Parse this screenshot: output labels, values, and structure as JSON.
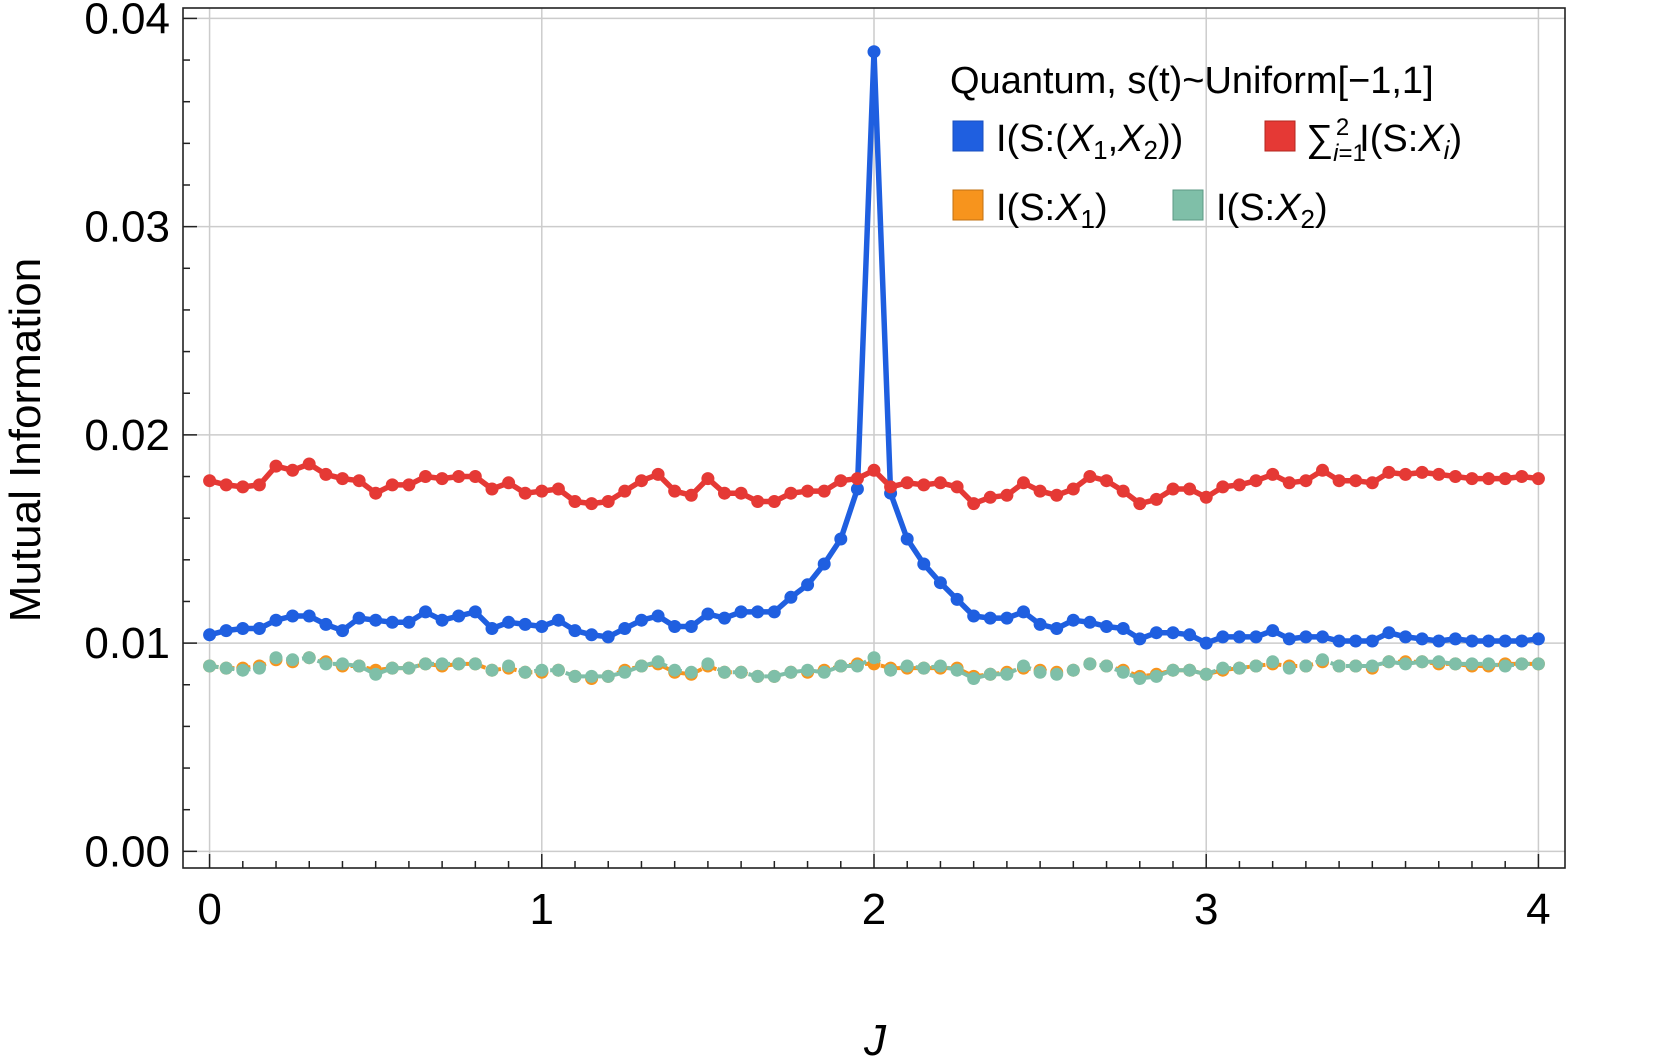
{
  "chart_data": {
    "type": "line",
    "xlabel": "J",
    "ylabel": "Mutual Information",
    "xlim": [
      -0.08,
      4.08
    ],
    "ylim": [
      -0.0008,
      0.0405
    ],
    "x_ticks": [
      "0",
      "1",
      "2",
      "3",
      "4"
    ],
    "y_ticks": [
      "0.00",
      "0.01",
      "0.02",
      "0.03",
      "0.04"
    ],
    "grid": true,
    "legend": {
      "placement": "top-right",
      "title": "Quantum, s(t)~Uniform[−1,1]",
      "entries": [
        {
          "id": "joint",
          "label": "I(S:(X1,X2))"
        },
        {
          "id": "sum",
          "label": "∑ i=1..2 I(S:Xi)"
        },
        {
          "id": "x1",
          "label": "I(S:X1)"
        },
        {
          "id": "x2",
          "label": "I(S:X2)"
        }
      ]
    },
    "x": [
      0,
      0.05,
      0.1,
      0.15,
      0.2,
      0.25,
      0.3,
      0.35,
      0.4,
      0.45,
      0.5,
      0.55,
      0.6,
      0.65,
      0.7,
      0.75,
      0.8,
      0.85,
      0.9,
      0.95,
      1,
      1.05,
      1.1,
      1.15,
      1.2,
      1.25,
      1.3,
      1.35,
      1.4,
      1.45,
      1.5,
      1.55,
      1.6,
      1.65,
      1.7,
      1.75,
      1.8,
      1.85,
      1.9,
      1.95,
      2,
      2.05,
      2.1,
      2.15,
      2.2,
      2.25,
      2.3,
      2.35,
      2.4,
      2.45,
      2.5,
      2.55,
      2.6,
      2.65,
      2.7,
      2.75,
      2.8,
      2.85,
      2.9,
      2.95,
      3,
      3.05,
      3.1,
      3.15,
      3.2,
      3.25,
      3.3,
      3.35,
      3.4,
      3.45,
      3.5,
      3.55,
      3.6,
      3.65,
      3.7,
      3.75,
      3.8,
      3.85,
      3.9,
      3.95,
      4
    ],
    "series": [
      {
        "id": "joint",
        "name": "I(S:(X1,X2))",
        "color": "#1f5fe0",
        "dashed": false,
        "values": [
          0.0104,
          0.0106,
          0.0107,
          0.0107,
          0.0111,
          0.0113,
          0.0113,
          0.0109,
          0.0106,
          0.0112,
          0.0111,
          0.011,
          0.011,
          0.0115,
          0.0111,
          0.0113,
          0.0115,
          0.0107,
          0.011,
          0.0109,
          0.0108,
          0.0111,
          0.0106,
          0.0104,
          0.0103,
          0.0107,
          0.0111,
          0.0113,
          0.0108,
          0.0108,
          0.0114,
          0.0112,
          0.0115,
          0.0115,
          0.0115,
          0.0122,
          0.0128,
          0.0138,
          0.015,
          0.0174,
          0.0384,
          0.0172,
          0.015,
          0.0138,
          0.0129,
          0.0121,
          0.0113,
          0.0112,
          0.0112,
          0.0115,
          0.0109,
          0.0107,
          0.0111,
          0.011,
          0.0108,
          0.0107,
          0.0102,
          0.0105,
          0.0105,
          0.0104,
          0.01,
          0.0103,
          0.0103,
          0.0103,
          0.0106,
          0.0102,
          0.0103,
          0.0103,
          0.0101,
          0.0101,
          0.0101,
          0.0105,
          0.0103,
          0.0102,
          0.0101,
          0.0102,
          0.0101,
          0.0101,
          0.0101,
          0.0101,
          0.0102
        ]
      },
      {
        "id": "sum",
        "name": "∑ i=1..2 I(S:Xi)",
        "color": "#e53935",
        "dashed": false,
        "values": [
          0.0178,
          0.0176,
          0.0175,
          0.0176,
          0.0185,
          0.0183,
          0.0186,
          0.0181,
          0.0179,
          0.0178,
          0.0172,
          0.0176,
          0.0176,
          0.018,
          0.0179,
          0.018,
          0.018,
          0.0174,
          0.0177,
          0.0172,
          0.0173,
          0.0174,
          0.0168,
          0.0167,
          0.0168,
          0.0173,
          0.0178,
          0.0181,
          0.0173,
          0.0171,
          0.0179,
          0.0172,
          0.0172,
          0.0168,
          0.0168,
          0.0172,
          0.0173,
          0.0173,
          0.0178,
          0.0179,
          0.0183,
          0.0175,
          0.0177,
          0.0176,
          0.0177,
          0.0175,
          0.0167,
          0.017,
          0.0171,
          0.0177,
          0.0173,
          0.0171,
          0.0174,
          0.018,
          0.0178,
          0.0173,
          0.0167,
          0.0169,
          0.0174,
          0.0174,
          0.017,
          0.0175,
          0.0176,
          0.0178,
          0.0181,
          0.0177,
          0.0178,
          0.0183,
          0.0178,
          0.0178,
          0.0177,
          0.0182,
          0.0181,
          0.0182,
          0.0181,
          0.018,
          0.0179,
          0.0179,
          0.0179,
          0.018,
          0.0179
        ]
      },
      {
        "id": "x1",
        "name": "I(S:X1)",
        "color": "#f7941d",
        "dashed": true,
        "values": [
          0.0089,
          0.0088,
          0.0088,
          0.0089,
          0.0092,
          0.0091,
          0.0093,
          0.0091,
          0.0089,
          0.0089,
          0.0087,
          0.0088,
          0.0088,
          0.009,
          0.0089,
          0.009,
          0.009,
          0.0087,
          0.0088,
          0.0086,
          0.0086,
          0.0087,
          0.0084,
          0.0083,
          0.0084,
          0.0087,
          0.0089,
          0.009,
          0.0086,
          0.0085,
          0.0089,
          0.0086,
          0.0086,
          0.0084,
          0.0084,
          0.0086,
          0.0086,
          0.0087,
          0.0089,
          0.009,
          0.009,
          0.0088,
          0.0088,
          0.0088,
          0.0088,
          0.0088,
          0.0084,
          0.0085,
          0.0086,
          0.0088,
          0.0087,
          0.0086,
          0.0087,
          0.009,
          0.0089,
          0.0087,
          0.0084,
          0.0085,
          0.0087,
          0.0087,
          0.0085,
          0.0087,
          0.0088,
          0.0089,
          0.009,
          0.0089,
          0.0089,
          0.0091,
          0.0089,
          0.0089,
          0.0088,
          0.0091,
          0.0091,
          0.0091,
          0.009,
          0.009,
          0.0089,
          0.0089,
          0.009,
          0.009,
          0.009
        ]
      },
      {
        "id": "x2",
        "name": "I(S:X2)",
        "color": "#7fbfa8",
        "dashed": true,
        "values": [
          0.0089,
          0.0088,
          0.0087,
          0.0088,
          0.0093,
          0.0092,
          0.0093,
          0.009,
          0.009,
          0.0089,
          0.0085,
          0.0088,
          0.0088,
          0.009,
          0.009,
          0.009,
          0.009,
          0.0087,
          0.0089,
          0.0086,
          0.0087,
          0.0087,
          0.0084,
          0.0084,
          0.0084,
          0.0086,
          0.0089,
          0.0091,
          0.0087,
          0.0086,
          0.009,
          0.0086,
          0.0086,
          0.0084,
          0.0084,
          0.0086,
          0.0087,
          0.0086,
          0.0089,
          0.0089,
          0.0093,
          0.0087,
          0.0089,
          0.0088,
          0.0089,
          0.0087,
          0.0083,
          0.0085,
          0.0085,
          0.0089,
          0.0086,
          0.0085,
          0.0087,
          0.009,
          0.0089,
          0.0086,
          0.0083,
          0.0084,
          0.0087,
          0.0087,
          0.0085,
          0.0088,
          0.0088,
          0.0089,
          0.0091,
          0.0088,
          0.0089,
          0.0092,
          0.0089,
          0.0089,
          0.0089,
          0.0091,
          0.009,
          0.0091,
          0.0091,
          0.009,
          0.009,
          0.009,
          0.0089,
          0.009,
          0.009
        ]
      }
    ]
  }
}
